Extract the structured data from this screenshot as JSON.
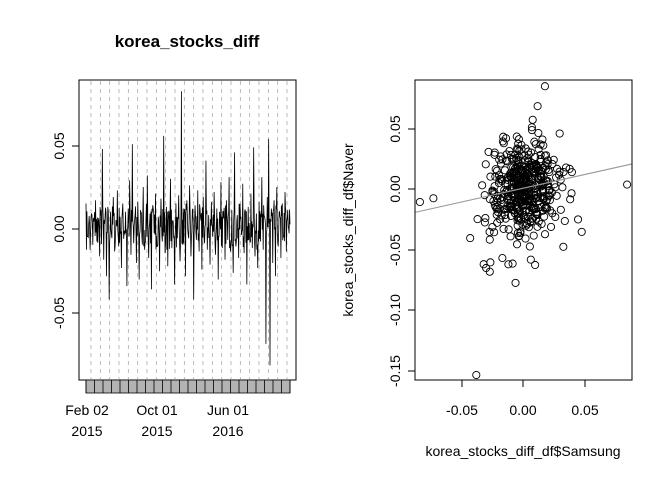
{
  "chart_data": [
    {
      "type": "line",
      "title": "korea_stocks_diff",
      "xlabel": "",
      "ylabel": "",
      "x_tick_labels": [
        {
          "line1": "Feb 02",
          "line2": "2015"
        },
        {
          "line1": "Oct 01",
          "line2": "2015"
        },
        {
          "line1": "Jun 01",
          "line2": "2016"
        }
      ],
      "y_tick_labels": [
        "-0.05",
        "0.00",
        "0.05"
      ],
      "y_ticks": [
        -0.05,
        0.0,
        0.05
      ],
      "ylim": [
        -0.088,
        0.087
      ],
      "x_range": [
        "2015-01-05",
        "2016-12-29"
      ],
      "grid": "vertical dashed",
      "series": [
        {
          "values_approx": [
            0.014,
            -0.006,
            0.002,
            -0.014,
            0.008,
            -0.011,
            0.005,
            0.016,
            -0.009,
            0.003,
            -0.018,
            0.01,
            0.047,
            -0.02,
            0.006,
            -0.03,
            0.012,
            -0.044,
            0.009,
            -0.007,
            0.018,
            -0.015,
            0.004,
            0.022,
            -0.012,
            0.006,
            -0.025,
            0.014,
            -0.003,
            0.009,
            -0.036,
            0.011,
            0.028,
            -0.017,
            0.05,
            -0.01,
            0.007,
            -0.022,
            0.015,
            -0.032,
            0.01,
            -0.006,
            0.024,
            -0.014,
            0.005,
            0.031,
            -0.019,
            0.008,
            -0.038,
            0.013,
            -0.004,
            0.02,
            -0.012,
            0.006,
            -0.027,
            0.017,
            -0.009,
            0.055,
            -0.016,
            0.012,
            -0.024,
            0.009,
            0.029,
            -0.013,
            0.003,
            -0.035,
            0.014,
            -0.007,
            0.019,
            -0.021,
            0.082,
            -0.011,
            0.008,
            -0.03,
            0.016,
            -0.005,
            0.025,
            -0.018,
            0.01,
            -0.044,
            0.013,
            -0.008,
            0.022,
            -0.015,
            0.006,
            -0.026,
            0.018,
            -0.01,
            0.04,
            -0.014,
            0.007,
            -0.023,
            0.015,
            -0.006,
            0.021,
            -0.017,
            0.011,
            -0.032,
            0.009,
            0.027,
            -0.013,
            0.005,
            -0.02,
            0.016,
            -0.008,
            0.03,
            -0.015,
            0.01,
            -0.028,
            0.045,
            -0.012,
            0.007,
            -0.019,
            0.014,
            -0.005,
            0.026,
            -0.016,
            0.009,
            -0.035,
            0.012,
            -0.007,
            0.02,
            -0.013,
            0.048,
            -0.018,
            0.008,
            -0.025,
            0.015,
            -0.009,
            0.03,
            -0.014,
            0.006,
            -0.071,
            0.018,
            0.053,
            -0.084,
            0.011,
            -0.022,
            0.016,
            -0.03,
            0.024,
            -0.012,
            0.009,
            -0.019,
            0.014,
            -0.006,
            0.021,
            -0.015,
            0.01,
            -0.004
          ]
        }
      ]
    },
    {
      "type": "scatter",
      "title": "",
      "xlabel": "korea_stocks_diff_df$Samsung",
      "ylabel": "korea_stocks_diff_df$Naver",
      "x_tick_labels": [
        "-0.05",
        "0.00",
        "0.05"
      ],
      "y_tick_labels": [
        "-0.15",
        "-0.10",
        "-0.05",
        "0.00",
        "0.05"
      ],
      "x_ticks": [
        -0.05,
        0.0,
        0.05
      ],
      "y_ticks": [
        -0.15,
        -0.1,
        -0.05,
        0.0,
        0.05
      ],
      "xlim": [
        -0.088,
        0.089
      ],
      "ylim": [
        -0.154,
        0.087
      ],
      "regression_line": {
        "intercept": 0.0,
        "slope": 0.22,
        "color": "#999999"
      },
      "outliers": [
        {
          "x": -0.084,
          "y": -0.011
        },
        {
          "x": -0.073,
          "y": -0.008
        },
        {
          "x": -0.043,
          "y": -0.04
        },
        {
          "x": -0.032,
          "y": -0.061
        },
        {
          "x": -0.03,
          "y": -0.064
        },
        {
          "x": -0.027,
          "y": -0.067
        },
        {
          "x": -0.038,
          "y": -0.15
        },
        {
          "x": -0.006,
          "y": -0.076
        },
        {
          "x": 0.018,
          "y": 0.082
        },
        {
          "x": 0.085,
          "y": 0.003
        },
        {
          "x": 0.048,
          "y": -0.035
        },
        {
          "x": 0.045,
          "y": -0.025
        },
        {
          "x": 0.04,
          "y": 0.013
        },
        {
          "x": 0.033,
          "y": -0.047
        },
        {
          "x": 0.03,
          "y": 0.044
        },
        {
          "x": 0.012,
          "y": 0.066
        },
        {
          "x": 0.008,
          "y": 0.055
        }
      ],
      "cluster": {
        "n_points": 440,
        "x_center": 0.0,
        "x_sd": 0.014,
        "y_center": 0.0,
        "y_sd": 0.019
      }
    }
  ]
}
